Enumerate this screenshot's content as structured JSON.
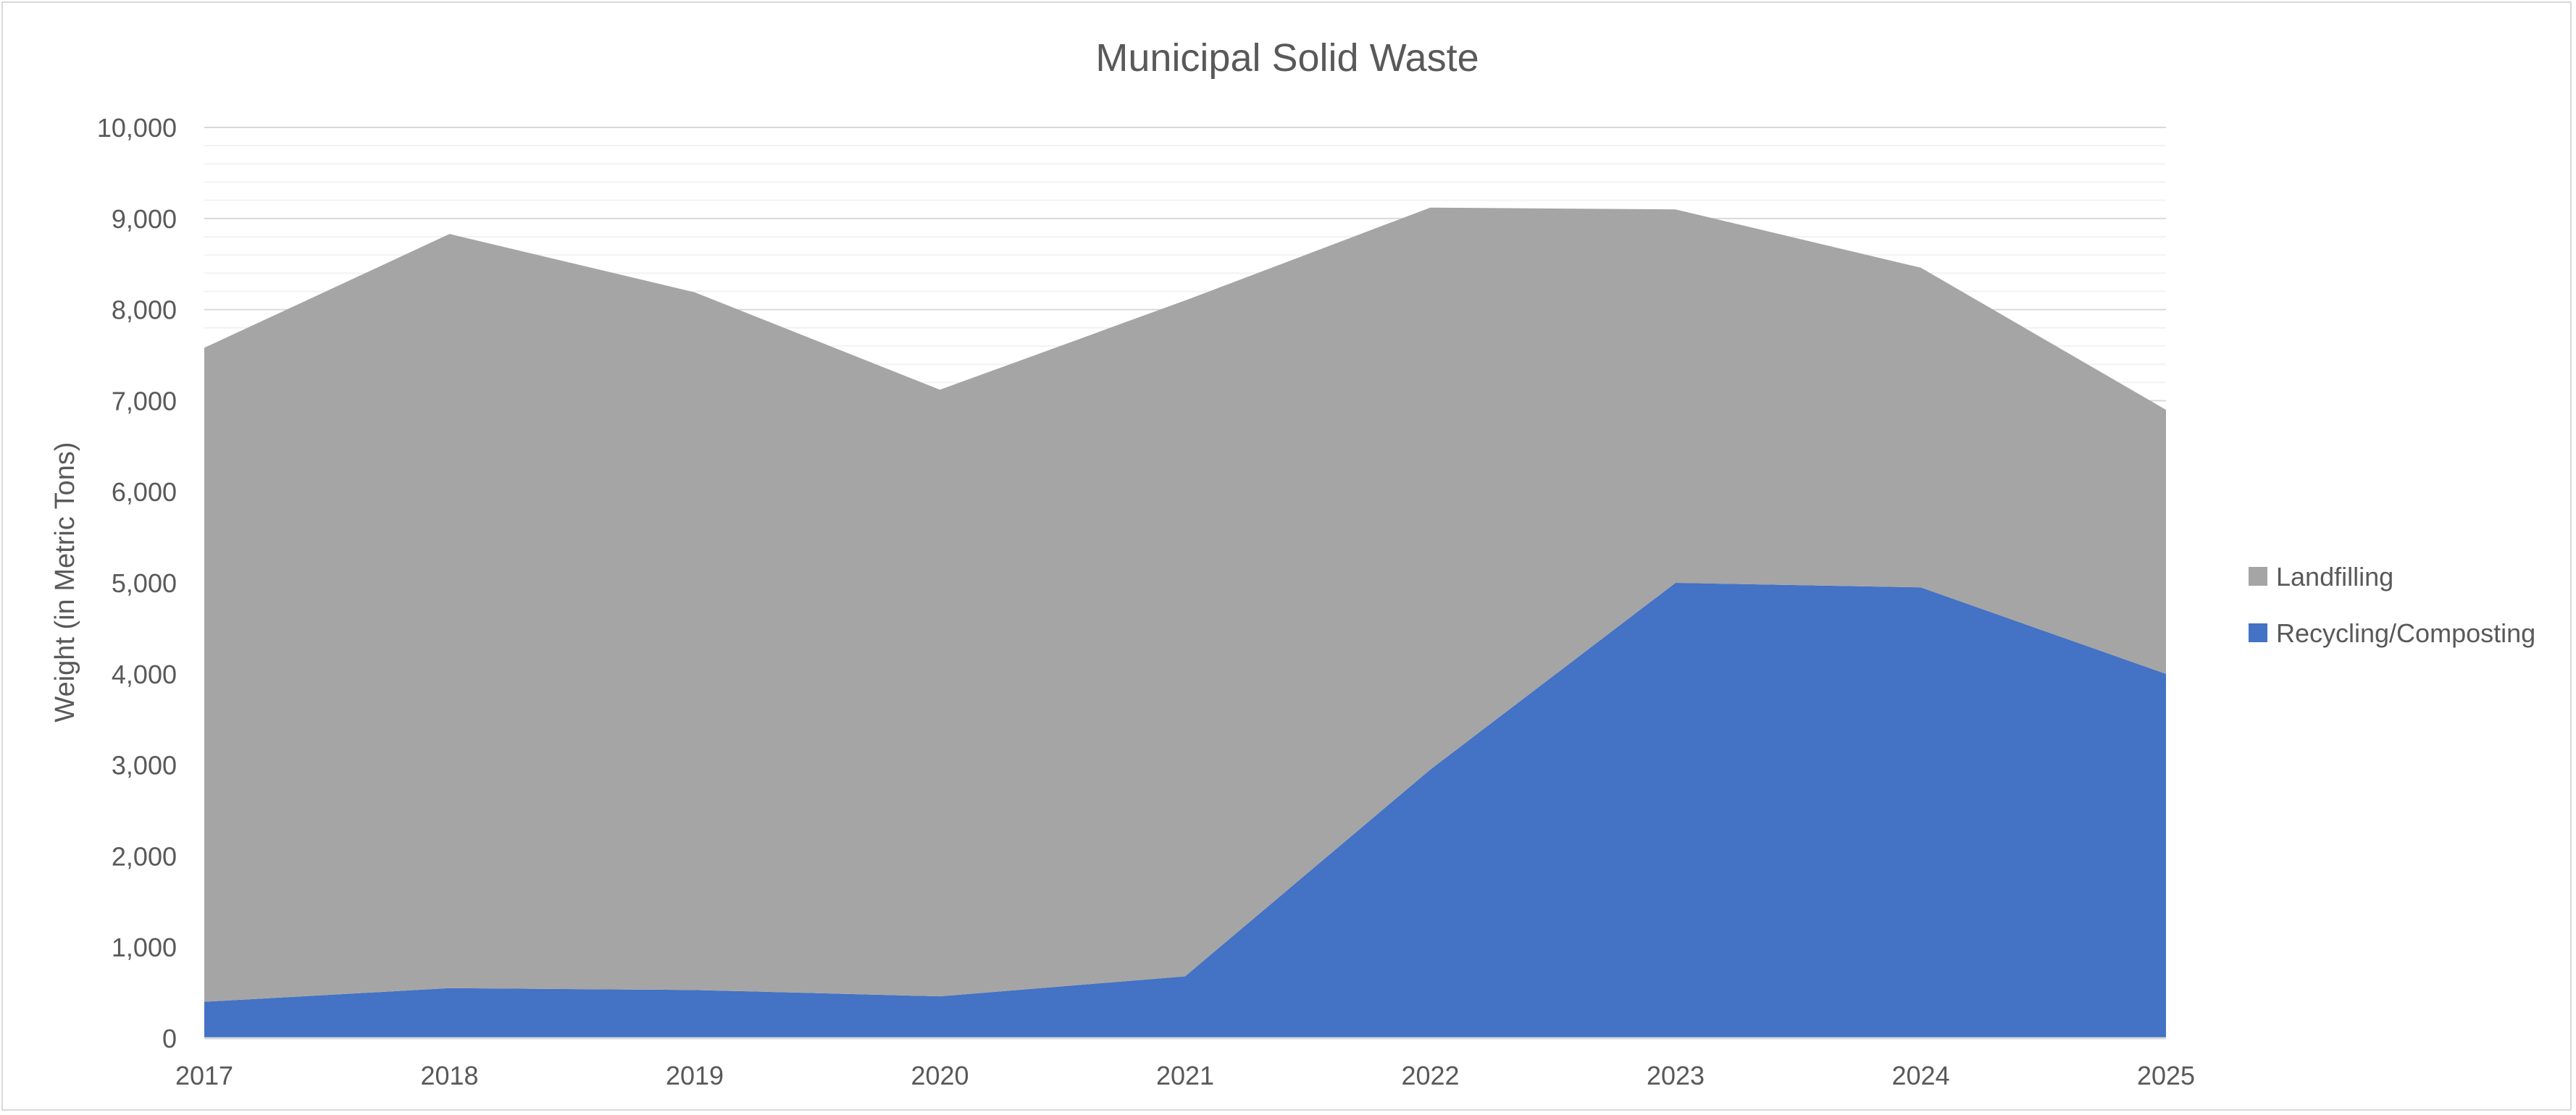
{
  "chart_data": {
    "type": "area",
    "stacked": true,
    "title": "Municipal Solid Waste",
    "xlabel": "",
    "ylabel": "Weight (in Metric Tons)",
    "categories": [
      "2017",
      "2018",
      "2019",
      "2020",
      "2021",
      "2022",
      "2023",
      "2024",
      "2025"
    ],
    "ylim": [
      0,
      10000
    ],
    "yticks": [
      0,
      1000,
      2000,
      3000,
      4000,
      5000,
      6000,
      7000,
      8000,
      9000,
      10000
    ],
    "ytick_labels": [
      "0",
      "1,000",
      "2,000",
      "3,000",
      "4,000",
      "5,000",
      "6,000",
      "7,000",
      "8,000",
      "9,000",
      "10,000"
    ],
    "grid": true,
    "legend_position": "right",
    "series": [
      {
        "name": "Recycling/Composting",
        "color": "#4472C4",
        "values": [
          400,
          550,
          530,
          460,
          680,
          2950,
          5000,
          4950,
          4000
        ]
      },
      {
        "name": "Landfilling",
        "color": "#A5A5A5",
        "values": [
          7180,
          8280,
          7660,
          6660,
          7420,
          6170,
          4100,
          3510,
          2900
        ]
      }
    ],
    "legend_order": [
      "Landfilling",
      "Recycling/Composting"
    ]
  }
}
